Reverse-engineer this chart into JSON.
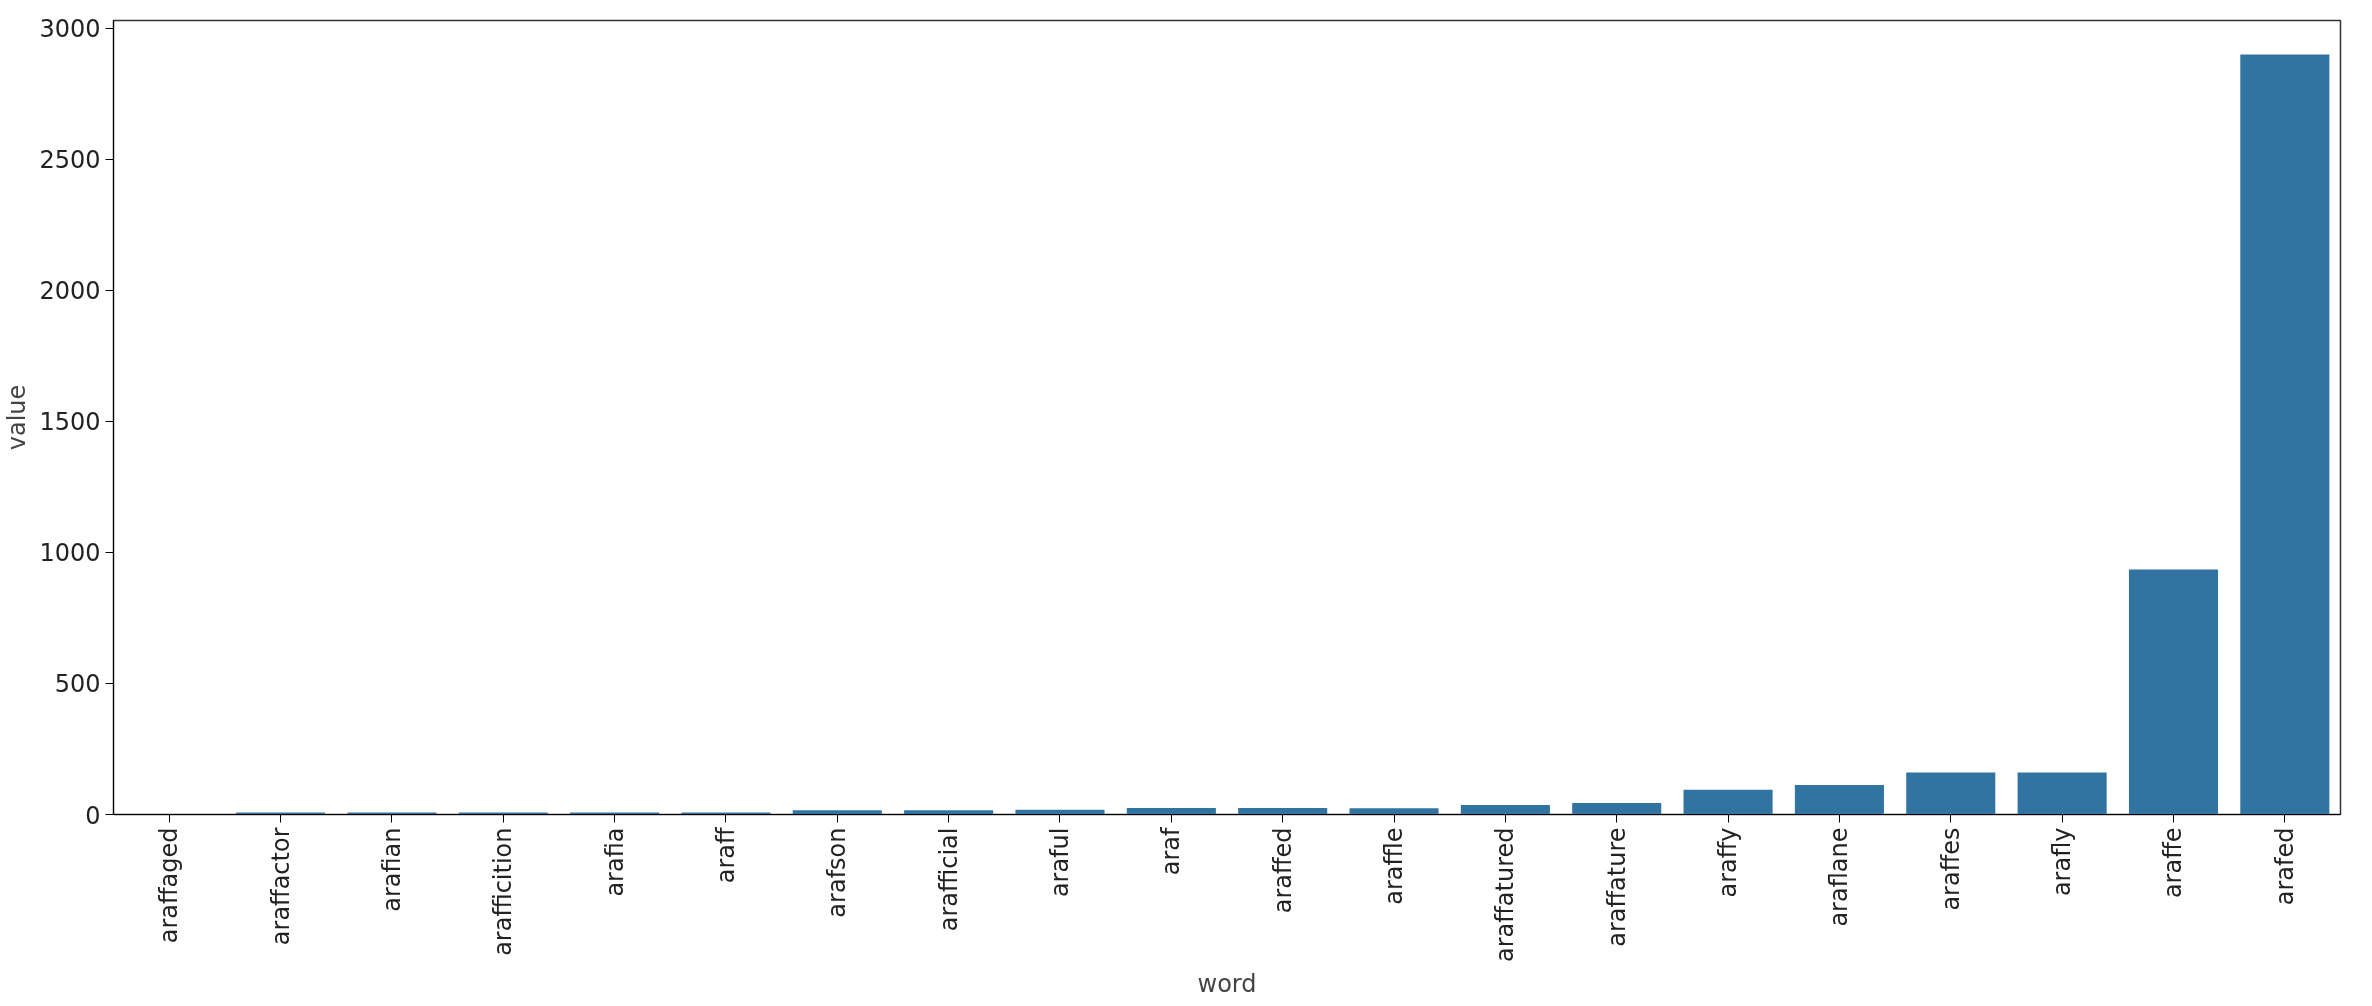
{
  "chart_data": {
    "type": "bar",
    "xlabel": "word",
    "ylabel": "value",
    "categories": [
      "araffaged",
      "araffactor",
      "arafian",
      "arafficition",
      "arafia",
      "araff",
      "arafson",
      "arafficial",
      "araful",
      "araf",
      "araffed",
      "araffle",
      "araffatured",
      "araffature",
      "araffy",
      "araflane",
      "araffes",
      "arafly",
      "araffe",
      "arafed"
    ],
    "values": [
      null,
      8,
      8,
      8,
      8,
      8,
      16,
      16,
      18,
      25,
      25,
      24,
      36,
      44,
      94,
      113,
      160,
      160,
      935,
      2900
    ],
    "color": "#3274a1",
    "ylim": [
      0,
      3030
    ],
    "yticks": [
      0,
      500,
      1000,
      1500,
      2000,
      2500,
      3000
    ],
    "grid": false
  }
}
